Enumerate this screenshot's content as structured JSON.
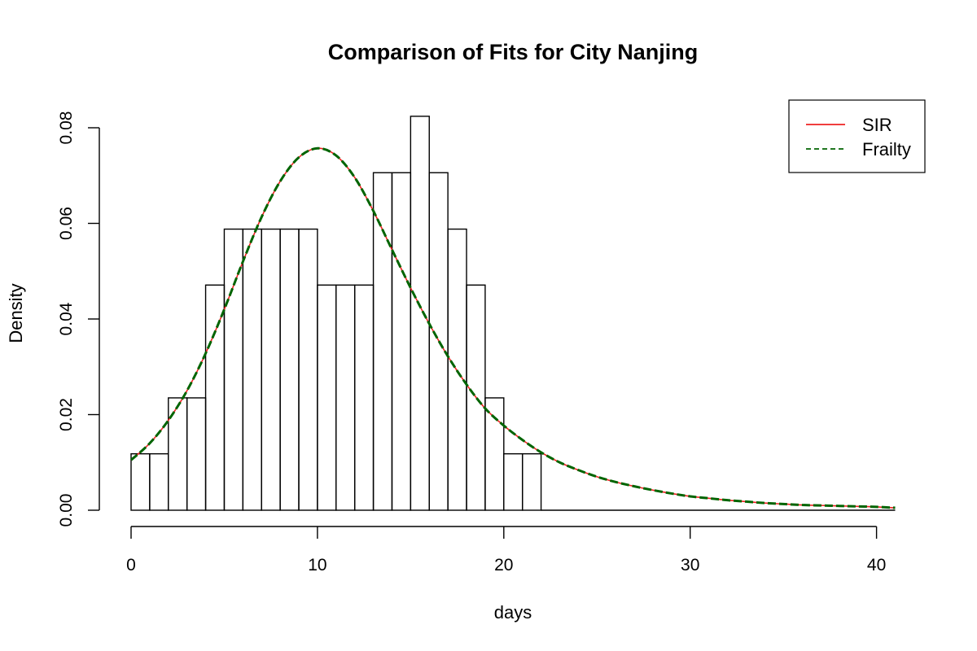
{
  "chart_data": {
    "type": "bar",
    "title": "Comparison of Fits for City Nanjing",
    "xlabel": "days",
    "ylabel": "Density",
    "xlim": [
      0,
      41
    ],
    "ylim": [
      0,
      0.08
    ],
    "x_ticks": [
      0,
      10,
      20,
      30,
      40
    ],
    "y_ticks": [
      0.0,
      0.02,
      0.04,
      0.06,
      0.08
    ],
    "x_tick_labels": [
      "0",
      "10",
      "20",
      "30",
      "40"
    ],
    "y_tick_labels": [
      "0.00",
      "0.02",
      "0.04",
      "0.06",
      "0.08"
    ],
    "histogram": {
      "bin_width": 1,
      "bins": [
        {
          "x0": 0,
          "x1": 1,
          "density": 0.0118
        },
        {
          "x0": 1,
          "x1": 2,
          "density": 0.0118
        },
        {
          "x0": 2,
          "x1": 3,
          "density": 0.0235
        },
        {
          "x0": 3,
          "x1": 4,
          "density": 0.0235
        },
        {
          "x0": 4,
          "x1": 5,
          "density": 0.0471
        },
        {
          "x0": 5,
          "x1": 6,
          "density": 0.0588
        },
        {
          "x0": 6,
          "x1": 7,
          "density": 0.0588
        },
        {
          "x0": 7,
          "x1": 8,
          "density": 0.0588
        },
        {
          "x0": 8,
          "x1": 9,
          "density": 0.0588
        },
        {
          "x0": 9,
          "x1": 10,
          "density": 0.0588
        },
        {
          "x0": 10,
          "x1": 11,
          "density": 0.0471
        },
        {
          "x0": 11,
          "x1": 12,
          "density": 0.0471
        },
        {
          "x0": 12,
          "x1": 13,
          "density": 0.0471
        },
        {
          "x0": 13,
          "x1": 14,
          "density": 0.0706
        },
        {
          "x0": 14,
          "x1": 15,
          "density": 0.0706
        },
        {
          "x0": 15,
          "x1": 16,
          "density": 0.0824
        },
        {
          "x0": 16,
          "x1": 17,
          "density": 0.0706
        },
        {
          "x0": 17,
          "x1": 18,
          "density": 0.0588
        },
        {
          "x0": 18,
          "x1": 19,
          "density": 0.0471
        },
        {
          "x0": 19,
          "x1": 20,
          "density": 0.0235
        },
        {
          "x0": 20,
          "x1": 21,
          "density": 0.0118
        },
        {
          "x0": 21,
          "x1": 22,
          "density": 0.0118
        },
        {
          "x0": 22,
          "x1": 41,
          "density": 0
        }
      ]
    },
    "series": [
      {
        "name": "SIR",
        "color": "#ee2222",
        "style": "solid",
        "x": [
          0,
          1,
          2,
          3,
          4,
          5,
          6,
          7,
          8,
          9,
          10,
          11,
          12,
          13,
          14,
          15,
          16,
          17,
          18,
          19,
          20,
          21,
          22,
          23,
          24,
          25,
          26,
          27,
          28,
          29,
          30,
          31,
          32,
          33,
          34,
          35,
          36,
          37,
          38,
          39,
          40,
          41
        ],
        "y": [
          0.0105,
          0.014,
          0.0188,
          0.025,
          0.0328,
          0.042,
          0.052,
          0.0613,
          0.0688,
          0.0738,
          0.0757,
          0.0742,
          0.0696,
          0.0626,
          0.0545,
          0.0465,
          0.039,
          0.0322,
          0.0263,
          0.0213,
          0.0177,
          0.0147,
          0.0121,
          0.01,
          0.0084,
          0.007,
          0.0059,
          0.005,
          0.0042,
          0.0035,
          0.0029,
          0.0025,
          0.0021,
          0.0018,
          0.0015,
          0.0013,
          0.0011,
          0.001,
          0.0009,
          0.0008,
          0.0007,
          0.0005
        ]
      },
      {
        "name": "Frailty",
        "color": "#006400",
        "style": "dashed",
        "x": [
          0,
          1,
          2,
          3,
          4,
          5,
          6,
          7,
          8,
          9,
          10,
          11,
          12,
          13,
          14,
          15,
          16,
          17,
          18,
          19,
          20,
          21,
          22,
          23,
          24,
          25,
          26,
          27,
          28,
          29,
          30,
          31,
          32,
          33,
          34,
          35,
          36,
          37,
          38,
          39,
          40,
          41
        ],
        "y": [
          0.0105,
          0.014,
          0.0188,
          0.025,
          0.0328,
          0.042,
          0.052,
          0.0613,
          0.0688,
          0.0738,
          0.0757,
          0.0742,
          0.0696,
          0.0626,
          0.0545,
          0.0465,
          0.039,
          0.0322,
          0.0263,
          0.0213,
          0.0177,
          0.0147,
          0.0121,
          0.01,
          0.0084,
          0.007,
          0.0059,
          0.005,
          0.0042,
          0.0035,
          0.0029,
          0.0025,
          0.0021,
          0.0018,
          0.0015,
          0.0013,
          0.0011,
          0.001,
          0.0009,
          0.0008,
          0.0007,
          0.0005
        ]
      }
    ],
    "legend": {
      "position": "top-right",
      "entries": [
        {
          "label": "SIR",
          "color": "#ee2222",
          "style": "solid"
        },
        {
          "label": "Frailty",
          "color": "#006400",
          "style": "dashed"
        }
      ]
    },
    "grid": false
  }
}
